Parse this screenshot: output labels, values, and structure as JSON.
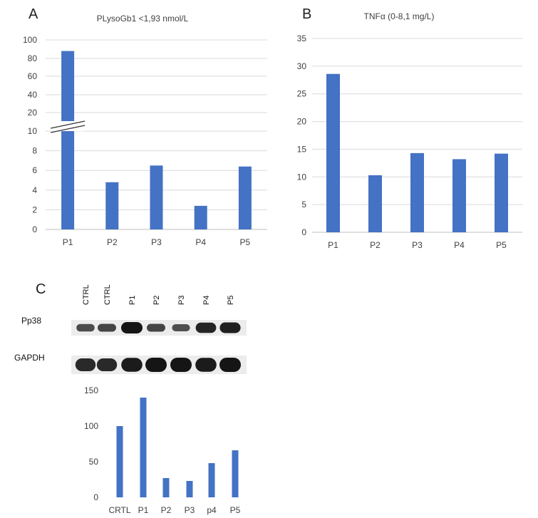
{
  "panels": {
    "a": {
      "letter": "A"
    },
    "b": {
      "letter": "B"
    },
    "c": {
      "letter": "C"
    }
  },
  "colors": {
    "bar": "#4472c4",
    "grid": "#d9d9d9",
    "band": "#151515"
  },
  "chart_data": [
    {
      "id": "A",
      "type": "bar",
      "title": "PLysoGb1 <1,93 nmol/L",
      "categories": [
        "P1",
        "P2",
        "P3",
        "P4",
        "P5"
      ],
      "values": [
        88,
        4.8,
        6.5,
        2.4,
        6.4
      ],
      "axis_break": {
        "lower_range": [
          0,
          10
        ],
        "upper_range": [
          10,
          100
        ]
      },
      "yticks": [
        0,
        2,
        4,
        6,
        8,
        10,
        20,
        40,
        60,
        80,
        100
      ],
      "xlabel": "",
      "ylabel": "",
      "grid": true
    },
    {
      "id": "B",
      "type": "bar",
      "title": "TNFα (0-8,1 mg/L)",
      "categories": [
        "P1",
        "P2",
        "P3",
        "P4",
        "P5"
      ],
      "values": [
        28.6,
        10.3,
        14.3,
        13.2,
        14.2
      ],
      "ylim": [
        0,
        35
      ],
      "yticks": [
        0,
        5,
        10,
        15,
        20,
        25,
        30,
        35
      ],
      "xlabel": "",
      "ylabel": "",
      "grid": true
    },
    {
      "id": "C",
      "type": "bar",
      "title": "",
      "categories": [
        "CRTL",
        "P1",
        "P2",
        "P3",
        "p4",
        "P5"
      ],
      "values": [
        100,
        140,
        27,
        23,
        48,
        66
      ],
      "ylim": [
        0,
        150
      ],
      "yticks": [
        0,
        50,
        100,
        150
      ],
      "xlabel": "",
      "ylabel": "",
      "grid": false
    }
  ],
  "blot": {
    "lanes": [
      "CTRL",
      "CTRL",
      "P1",
      "P2",
      "P3",
      "P4",
      "P5"
    ],
    "rows": [
      {
        "label": "Pp38",
        "intensity": [
          0.45,
          0.5,
          1.0,
          0.5,
          0.4,
          0.85,
          0.9
        ]
      },
      {
        "label": "GAPDH",
        "intensity": [
          0.8,
          0.8,
          0.95,
          1.0,
          1.0,
          0.95,
          1.0
        ]
      }
    ]
  }
}
